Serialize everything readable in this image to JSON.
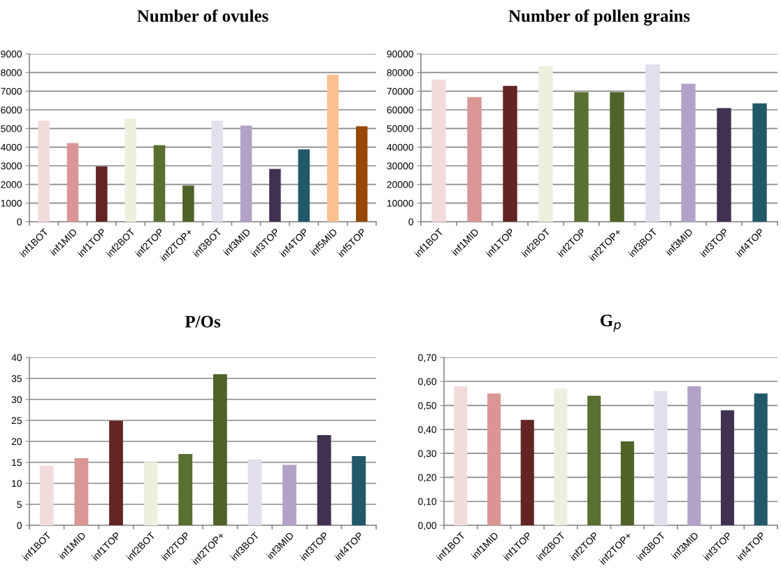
{
  "chart_data": [
    {
      "type": "bar",
      "title": "Number of ovules",
      "categories": [
        "inf1BOT",
        "inf1MID",
        "inf1TOP",
        "inf2BOT",
        "inf2TOP",
        "inf2TOP+",
        "inf3BOT",
        "inf3MID",
        "inf3TOP",
        "inf4TOP",
        "inf5MID",
        "inf5TOP"
      ],
      "values": [
        5420,
        4220,
        2960,
        5530,
        4110,
        1940,
        5420,
        5160,
        2830,
        3880,
        7880,
        5120
      ],
      "colors": [
        "#f2dcdb",
        "#d99694",
        "#632523",
        "#ebf1de",
        "#5a7030",
        "#4f6228",
        "#e4dfec",
        "#b2a2c7",
        "#403151",
        "#215968",
        "#fac090",
        "#974806"
      ],
      "ylim": [
        0,
        9000
      ],
      "yticks": [
        0,
        1000,
        2000,
        3000,
        4000,
        5000,
        6000,
        7000,
        8000,
        9000
      ],
      "grid": "y",
      "legend": false
    },
    {
      "type": "bar",
      "title": "Number of pollen grains",
      "categories": [
        "inf1BOT",
        "inf1MID",
        "inf1TOP",
        "inf2BOT",
        "inf2TOP",
        "inf2TOP+",
        "inf3BOT",
        "inf3MID",
        "inf3TOP",
        "inf4TOP"
      ],
      "values": [
        76200,
        66800,
        72800,
        83300,
        69500,
        69500,
        84400,
        74000,
        60900,
        63500
      ],
      "colors": [
        "#f2dcdb",
        "#d99694",
        "#632523",
        "#ebf1de",
        "#5a7030",
        "#4f6228",
        "#e4dfec",
        "#b2a2c7",
        "#403151",
        "#215968"
      ],
      "ylim": [
        0,
        90000
      ],
      "yticks": [
        0,
        10000,
        20000,
        30000,
        40000,
        50000,
        60000,
        70000,
        80000,
        90000
      ],
      "grid": "y",
      "legend": false
    },
    {
      "type": "bar",
      "title": "P/Os",
      "categories": [
        "inf1BOT",
        "inf1MID",
        "inf1TOP",
        "inf2BOT",
        "inf2TOP",
        "inf2TOP+",
        "inf3BOT",
        "inf3MID",
        "inf3TOP",
        "inf4TOP"
      ],
      "values": [
        14.2,
        16.0,
        24.9,
        15.1,
        17.0,
        36.0,
        15.7,
        14.4,
        21.5,
        16.5
      ],
      "colors": [
        "#f2dcdb",
        "#d99694",
        "#632523",
        "#ebf1de",
        "#5a7030",
        "#4f6228",
        "#e4dfec",
        "#b2a2c7",
        "#403151",
        "#215968"
      ],
      "ylim": [
        0,
        40
      ],
      "yticks": [
        0,
        5,
        10,
        15,
        20,
        25,
        30,
        35,
        40
      ],
      "grid": "y",
      "legend": false
    },
    {
      "type": "bar",
      "title": "G$_{p}$",
      "categories": [
        "inf1BOT",
        "inf1MID",
        "inf1TOP",
        "inf2BOT",
        "inf2TOP",
        "inf2TOP+",
        "inf3BOT",
        "inf3MID",
        "inf3TOP",
        "inf4TOP"
      ],
      "values": [
        0.58,
        0.55,
        0.44,
        0.57,
        0.54,
        0.35,
        0.56,
        0.58,
        0.48,
        0.55
      ],
      "colors": [
        "#f2dcdb",
        "#d99694",
        "#632523",
        "#ebf1de",
        "#5a7030",
        "#4f6228",
        "#e4dfec",
        "#b2a2c7",
        "#403151",
        "#215968"
      ],
      "ylim": [
        0,
        0.7
      ],
      "yticks": [
        {
          "value": 0,
          "label": "0,00"
        },
        {
          "value": 0.1,
          "label": "0,10"
        },
        {
          "value": 0.2,
          "label": "0,20"
        },
        {
          "value": 0.3,
          "label": "0,30"
        },
        {
          "value": 0.4,
          "label": "0,40"
        },
        {
          "value": 0.5,
          "label": "0,50"
        },
        {
          "value": 0.6,
          "label": "0,60"
        },
        {
          "value": 0.7,
          "label": "0,70"
        }
      ],
      "grid": "y",
      "legend": false
    }
  ]
}
